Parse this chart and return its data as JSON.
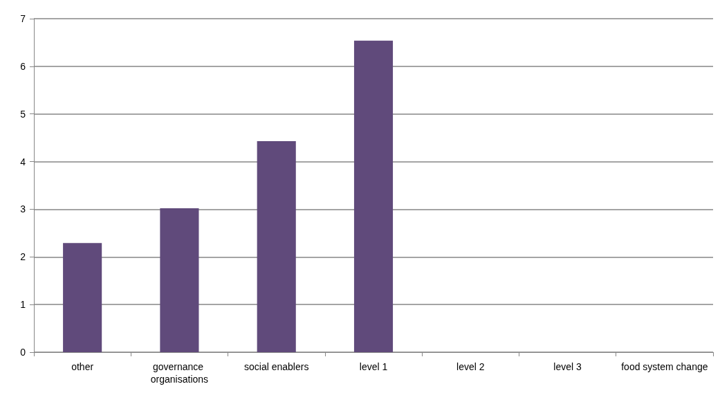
{
  "chart_data": {
    "type": "bar",
    "categories": [
      "other",
      "governance organisations",
      "social enablers",
      "level 1",
      "level 2",
      "level 3",
      "food system change"
    ],
    "values": [
      2.29,
      3.02,
      4.43,
      6.54,
      0,
      0,
      0
    ],
    "color": "#604a7b",
    "ylim": [
      0,
      7
    ],
    "yticks": [
      0,
      1,
      2,
      3,
      4,
      5,
      6,
      7
    ],
    "grid": "y"
  }
}
